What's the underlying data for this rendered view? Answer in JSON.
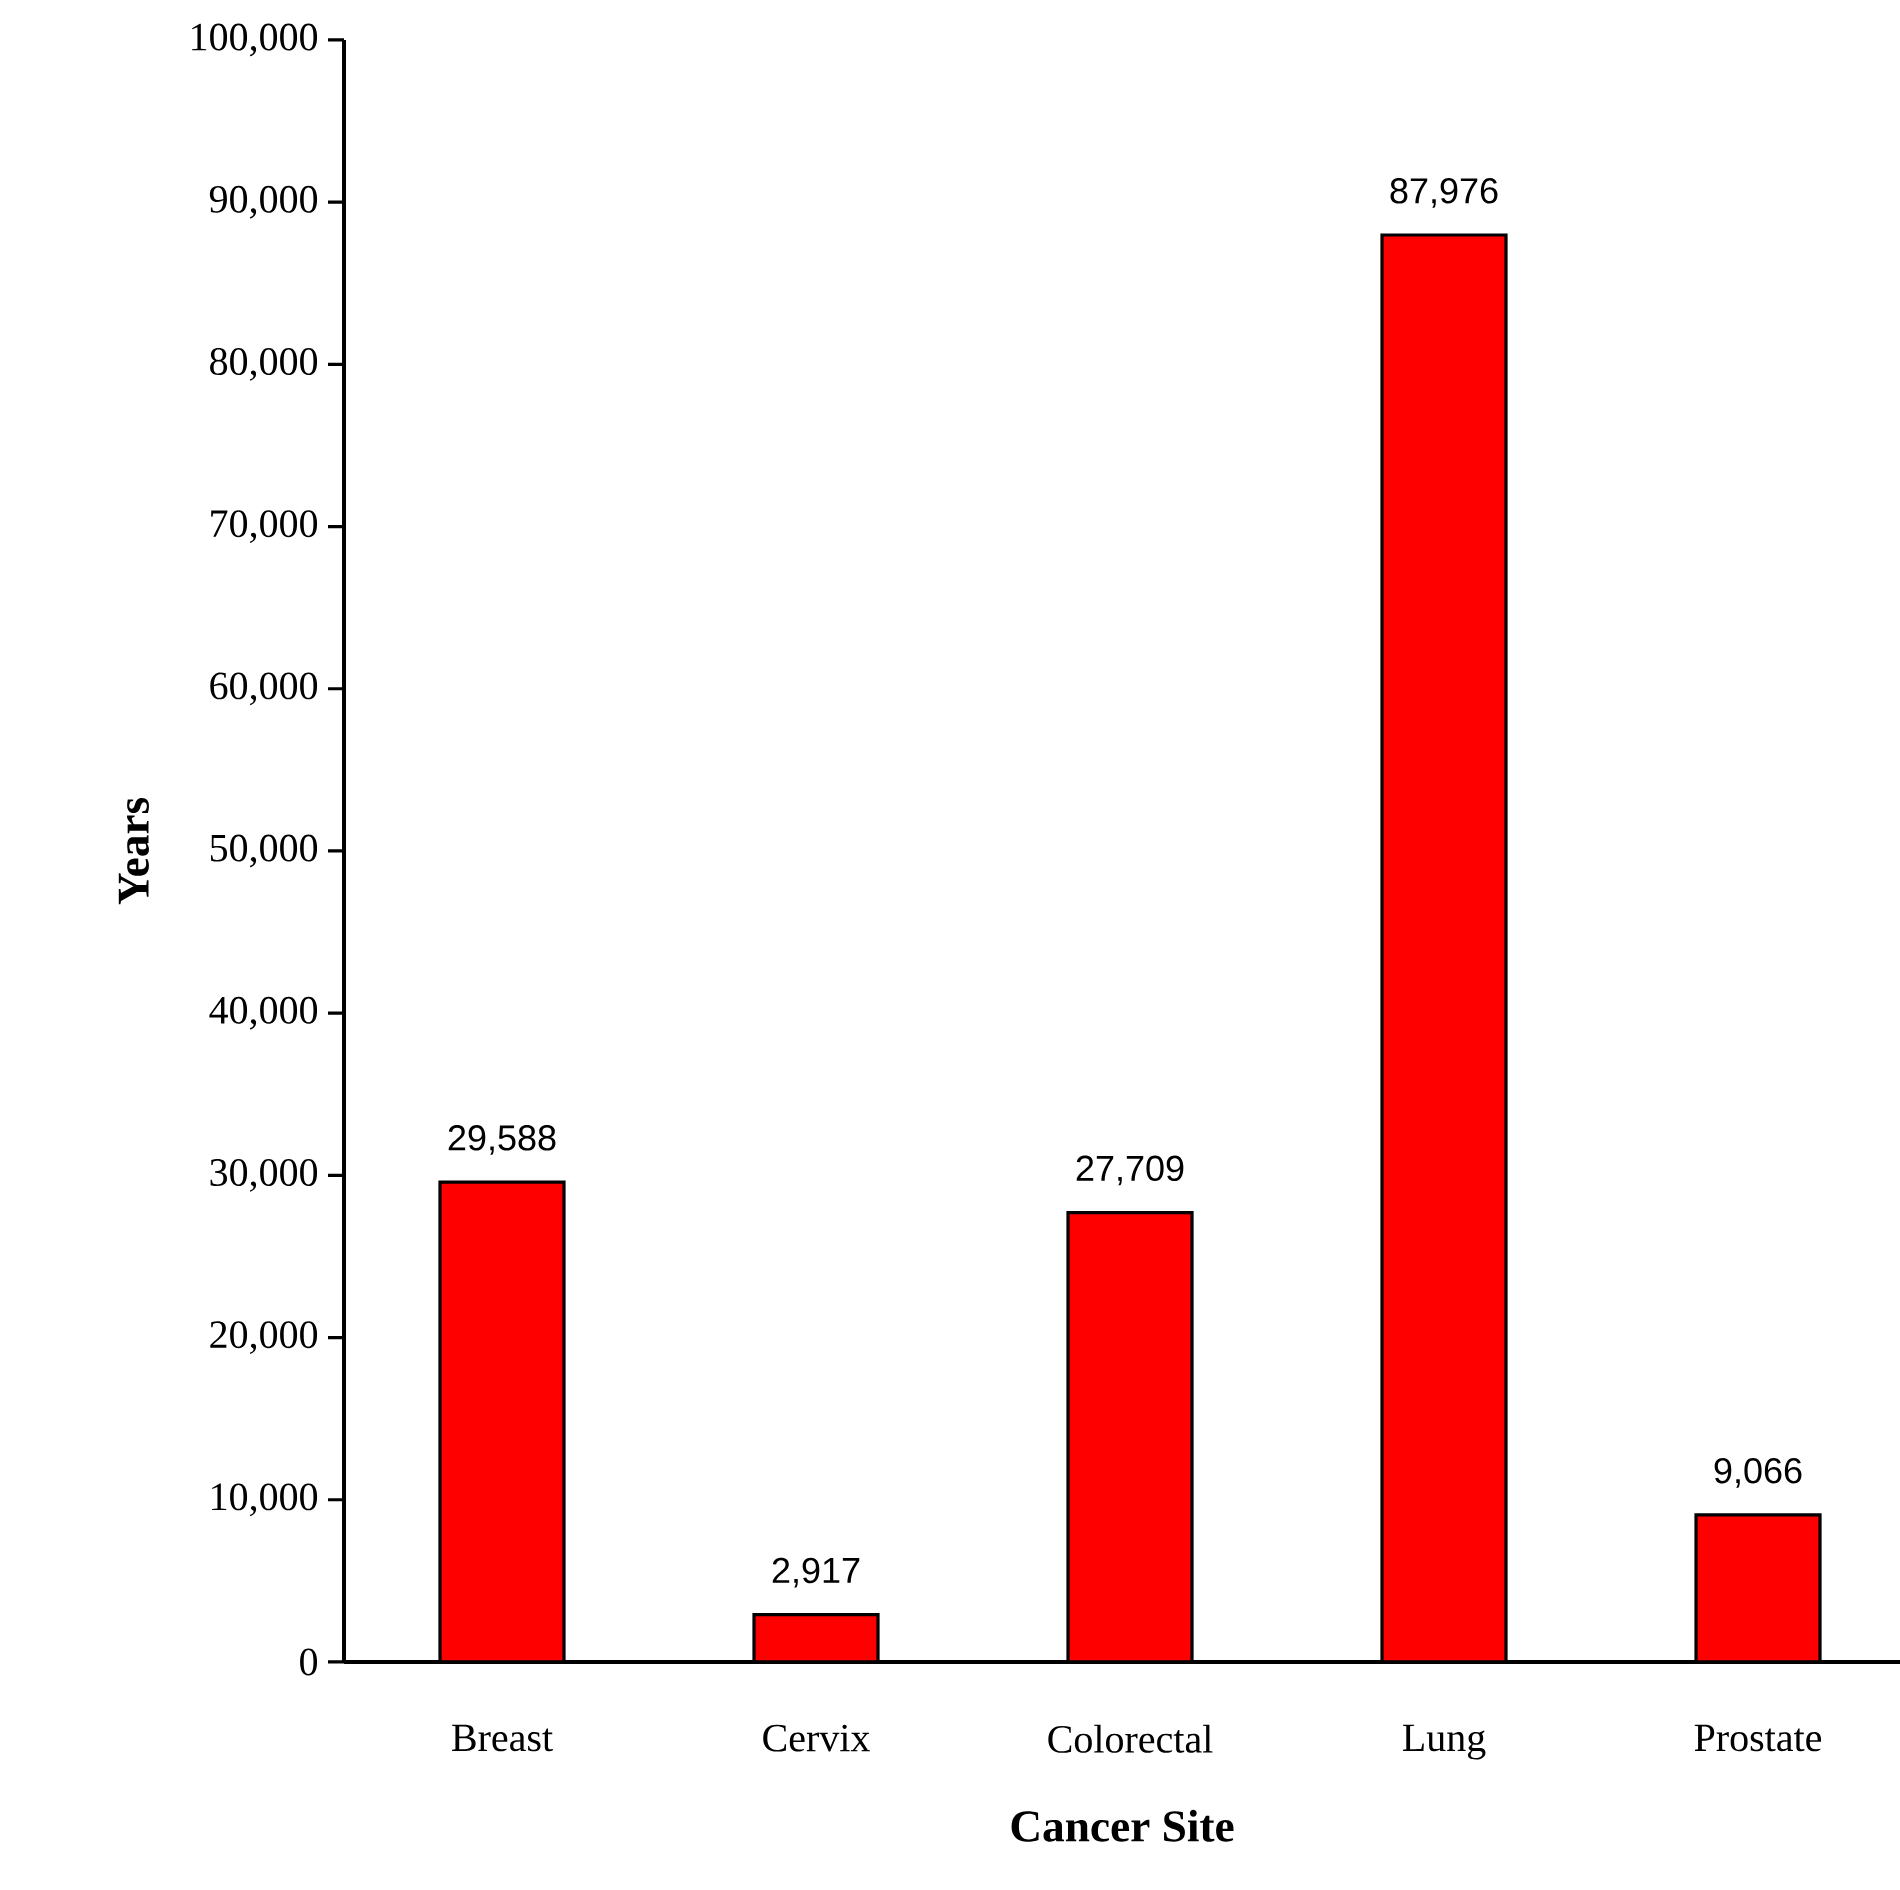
{
  "chart_data": {
    "type": "bar",
    "xlabel": "Cancer Site",
    "ylabel": "Years",
    "categories": [
      "Breast",
      "Cervix",
      "Colorectal",
      "Lung",
      "Prostate"
    ],
    "values": [
      29588,
      2917,
      27709,
      87976,
      9066
    ],
    "value_labels": [
      "29,588",
      "2,917",
      "27,709",
      "87,976",
      "9,066"
    ],
    "color": "#ff0000",
    "ylim": [
      0,
      100000
    ],
    "yticks": [
      0,
      {
        "value": 10000,
        "label": "10,000"
      },
      {
        "value": 20000,
        "label": "20,000"
      },
      {
        "value": 30000,
        "label": "30,000"
      },
      {
        "value": 40000,
        "label": "40,000"
      },
      {
        "value": 50000,
        "label": "50,000"
      },
      {
        "value": 60000,
        "label": "60,000"
      },
      {
        "value": 70000,
        "label": "70,000"
      },
      {
        "value": 80000,
        "label": "80,000"
      },
      {
        "value": 90000,
        "label": "90,000"
      },
      {
        "value": 100000,
        "label": "100,000"
      }
    ]
  }
}
